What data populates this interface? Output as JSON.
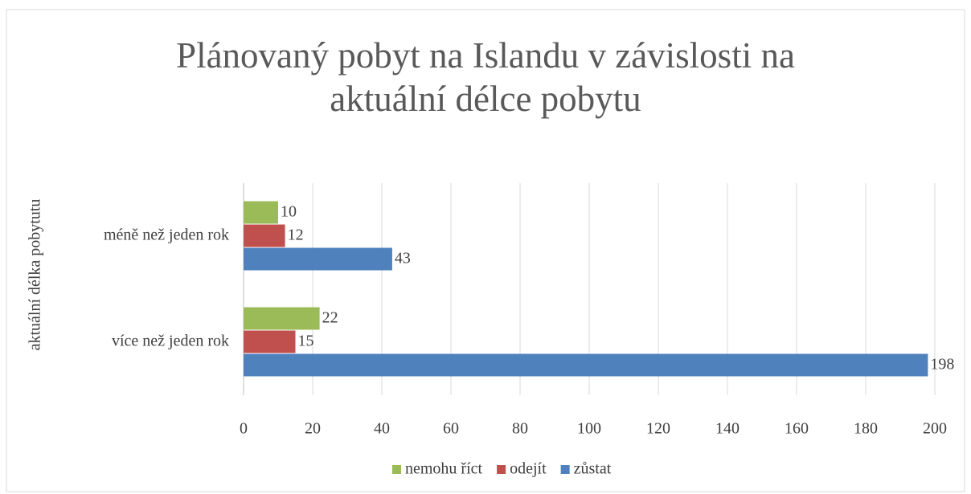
{
  "chart_data": {
    "type": "barh",
    "title": "Plánovaný pobyt na Islandu v závislosti na aktuální délce pobytu",
    "y_label": "aktuální délka pobytutu",
    "categories": [
      "méně než jeden rok",
      "více než jeden rok"
    ],
    "series": [
      {
        "name": "nemohu říct",
        "color": "#9bbb59",
        "values": [
          10,
          22
        ]
      },
      {
        "name": "odejít",
        "color": "#c0504d",
        "values": [
          12,
          15
        ]
      },
      {
        "name": "zůstat",
        "color": "#4f81bd",
        "values": [
          43,
          198
        ]
      }
    ],
    "xlim": [
      0,
      200
    ],
    "xticks": [
      0,
      20,
      40,
      60,
      80,
      100,
      120,
      140,
      160,
      180,
      200
    ],
    "grid": true,
    "legend": "bottom"
  }
}
